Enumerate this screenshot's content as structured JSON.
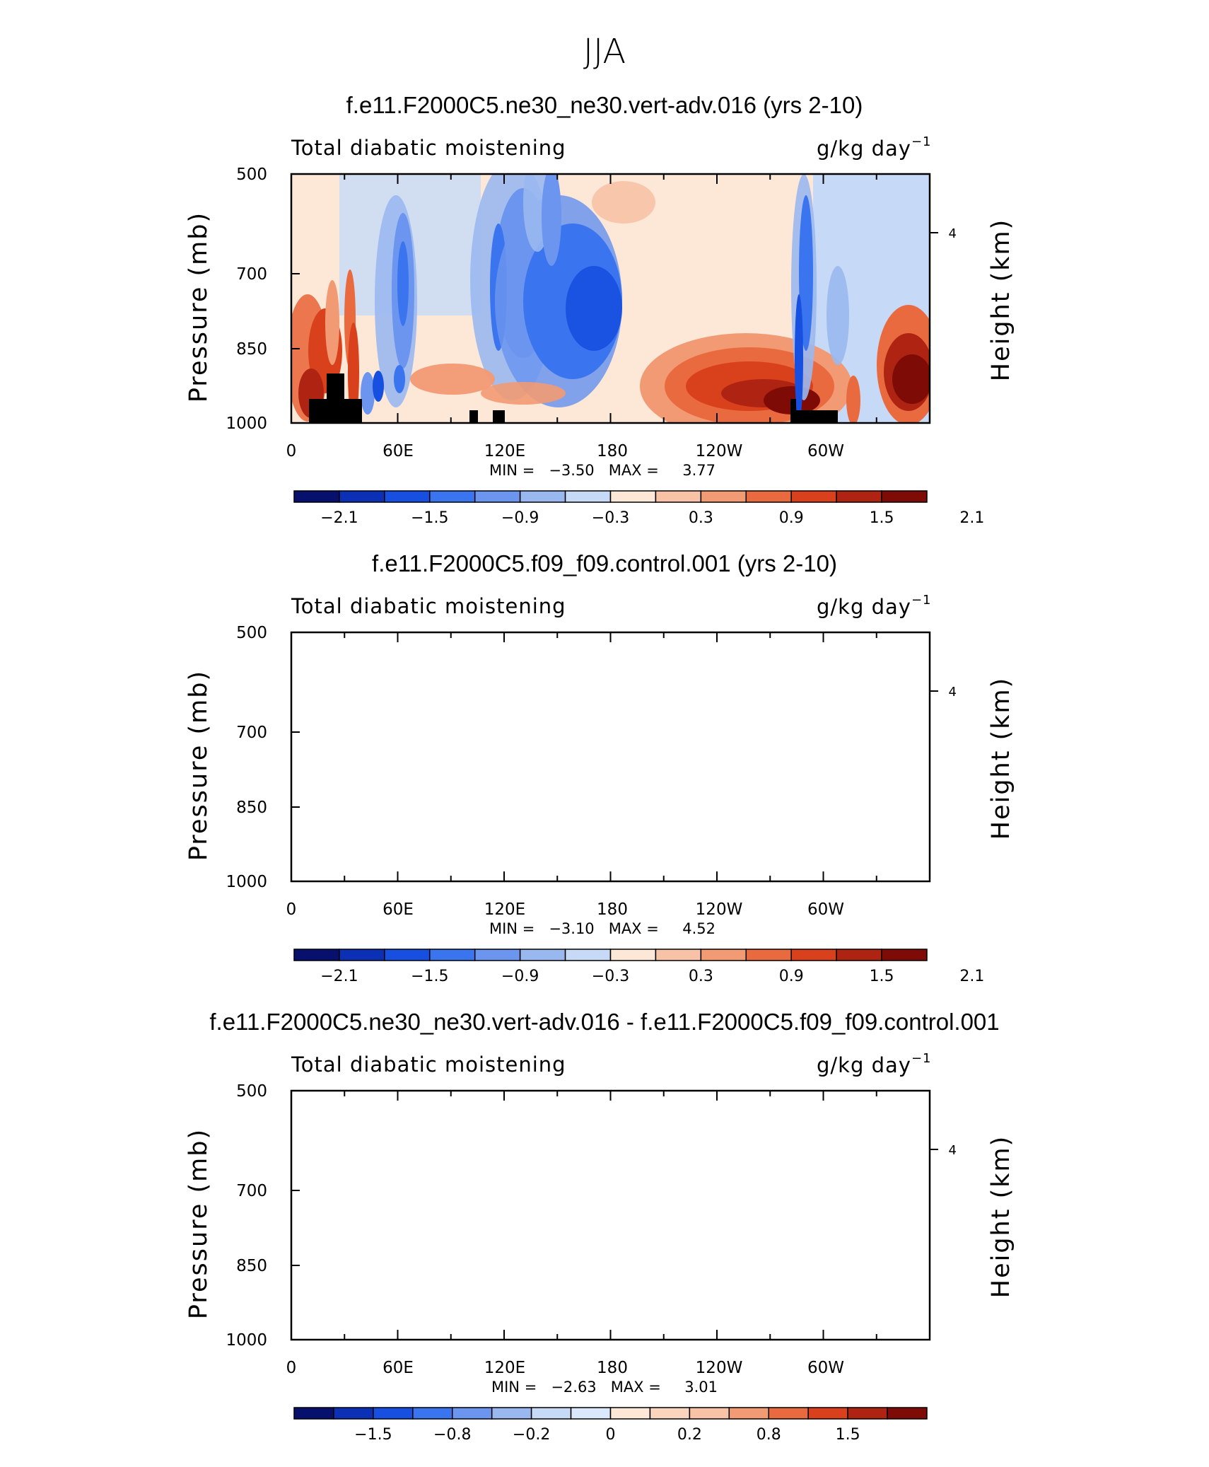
{
  "figure_title": "JJA",
  "colors": {
    "palette": [
      "#08106e",
      "#0b2fb5",
      "#1750e0",
      "#3b74ef",
      "#6b95ee",
      "#9ab8f0",
      "#c6daf7",
      "#fde8d8",
      "#f7c2a6",
      "#f29a73",
      "#ea6a3f",
      "#d9401c",
      "#ae2312",
      "#7e0b05"
    ],
    "land": "#000000"
  },
  "chart_data": [
    {
      "type": "heatmap",
      "title": "f.e11.F2000C5.ne30_ne30.vert-adv.016 (yrs 2-10)",
      "left_string": "Total diabatic moistening",
      "units_main": "g/kg day",
      "units_exp": "−1",
      "ylabel": "Pressure (mb)",
      "ylabel_right": "Height (km)",
      "y_ticks": [
        "500",
        "700",
        "850",
        "1000"
      ],
      "y_right_ticks": [
        "4"
      ],
      "x_ticks": [
        "0",
        "60E",
        "120E",
        "180",
        "120W",
        "60W"
      ],
      "stats": "MIN =   −3.50   MAX =     3.77",
      "colorbar_labels": [
        "−2.1",
        "−1.5",
        "−0.9",
        "−0.3",
        "0.3",
        "0.9",
        "1.5",
        "2.1"
      ],
      "min": -3.5,
      "max": 3.77
    },
    {
      "type": "heatmap",
      "title": "f.e11.F2000C5.f09_f09.control.001 (yrs 2-10)",
      "left_string": "Total diabatic moistening",
      "units_main": "g/kg day",
      "units_exp": "−1",
      "ylabel": "Pressure (mb)",
      "ylabel_right": "Height (km)",
      "y_ticks": [
        "500",
        "700",
        "850",
        "1000"
      ],
      "y_right_ticks": [
        "4"
      ],
      "x_ticks": [
        "0",
        "60E",
        "120E",
        "180",
        "120W",
        "60W"
      ],
      "stats": "MIN =   −3.10   MAX =     4.52",
      "colorbar_labels": [
        "−2.1",
        "−1.5",
        "−0.9",
        "−0.3",
        "0.3",
        "0.9",
        "1.5",
        "2.1"
      ],
      "min": -3.1,
      "max": 4.52
    },
    {
      "type": "heatmap",
      "title": "f.e11.F2000C5.ne30_ne30.vert-adv.016 - f.e11.F2000C5.f09_f09.control.001",
      "left_string": "Total diabatic moistening",
      "units_main": "g/kg day",
      "units_exp": "−1",
      "ylabel": "Pressure (mb)",
      "ylabel_right": "Height (km)",
      "y_ticks": [
        "500",
        "700",
        "850",
        "1000"
      ],
      "y_right_ticks": [
        "4"
      ],
      "x_ticks": [
        "0",
        "60E",
        "120E",
        "180",
        "120W",
        "60W"
      ],
      "stats": "MIN =   −2.63   MAX =     3.01",
      "colorbar_labels": [
        "−1.5",
        "−0.8",
        "−0.2",
        "0",
        "0.2",
        "0.8",
        "1.5"
      ],
      "min": -2.63,
      "max": 3.01
    }
  ]
}
